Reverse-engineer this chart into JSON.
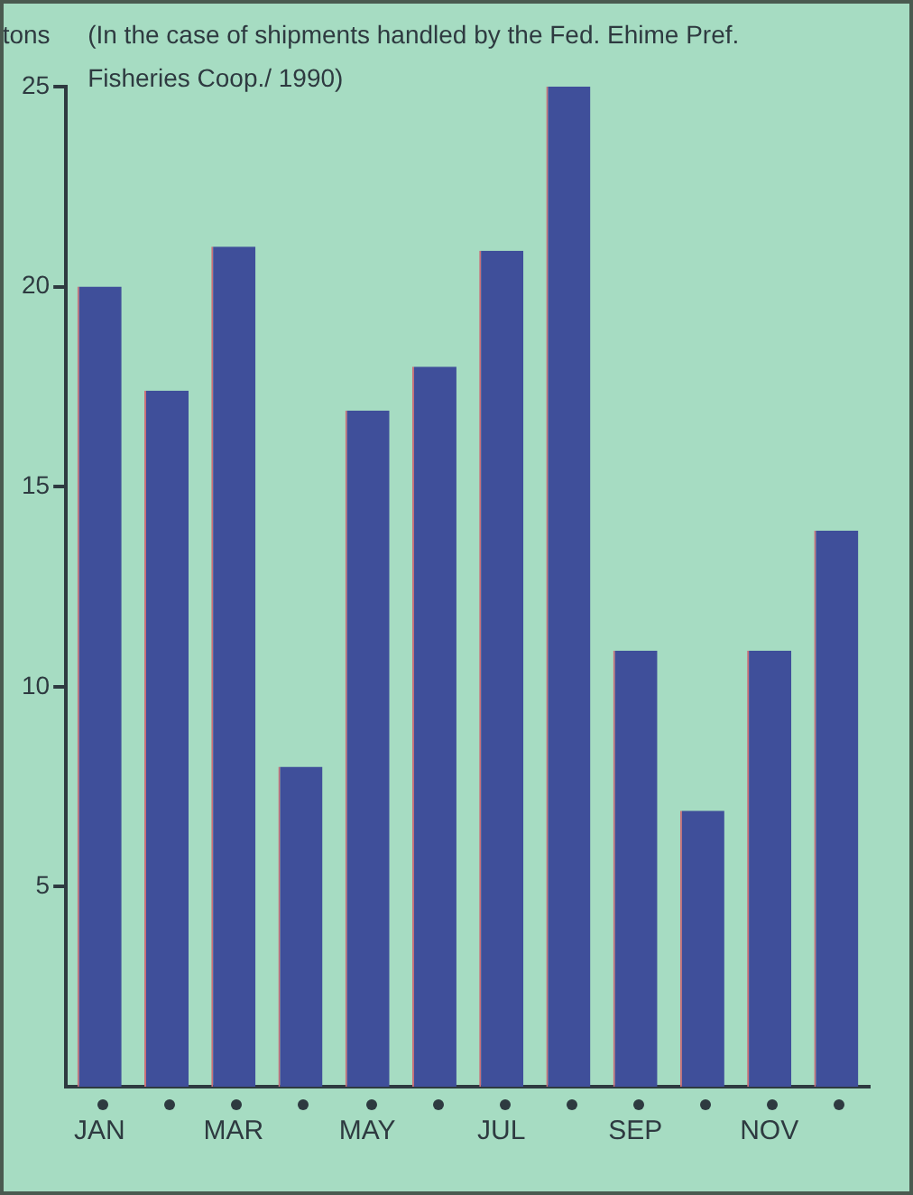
{
  "chart_data": {
    "type": "bar",
    "subtitle": "(In the case of shipments handled by the Fed. Ehime Pref. Fisheries Coop./ 1990)",
    "ylabel": "tons",
    "categories": [
      "JAN",
      null,
      "MAR",
      null,
      "MAY",
      null,
      "JUL",
      null,
      "SEP",
      null,
      "NOV",
      null
    ],
    "values": [
      20.0,
      17.4,
      21.0,
      8.0,
      16.9,
      18.0,
      20.9,
      25.0,
      10.9,
      6.9,
      10.9,
      13.9
    ],
    "color": "#3f4f9a",
    "ylim": [
      0,
      25
    ],
    "yticks": [
      5,
      10,
      15,
      20,
      25
    ],
    "grid": false,
    "legend": false
  }
}
